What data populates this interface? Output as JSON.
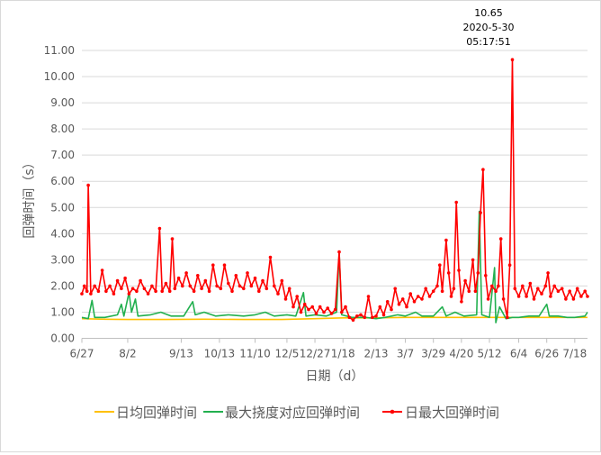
{
  "chart_data": {
    "type": "line",
    "title": "",
    "xlabel": "日期（d）",
    "ylabel": "回弹时间（s）",
    "ylim": [
      0,
      11
    ],
    "yticks": [
      "0.00",
      "1.00",
      "2.00",
      "3.00",
      "4.00",
      "5.00",
      "6.00",
      "7.00",
      "8.00",
      "9.00",
      "10.00",
      "11.00"
    ],
    "x_start": "2019-06-27",
    "x_end": "2020-07-28",
    "xticks": [
      {
        "date": "2019-06-27",
        "label": "6/27"
      },
      {
        "date": "2019-08-02",
        "label": "8/2"
      },
      {
        "date": "2019-09-13",
        "label": "9/13"
      },
      {
        "date": "2019-10-13",
        "label": "10/13"
      },
      {
        "date": "2019-11-10",
        "label": "11/10"
      },
      {
        "date": "2019-12-05",
        "label": "12/5"
      },
      {
        "date": "2019-12-27",
        "label": "12/27"
      },
      {
        "date": "2020-01-18",
        "label": "1/18"
      },
      {
        "date": "2020-02-13",
        "label": "2/13"
      },
      {
        "date": "2020-03-07",
        "label": "3/7"
      },
      {
        "date": "2020-03-29",
        "label": "3/29"
      },
      {
        "date": "2020-04-20",
        "label": "4/20"
      },
      {
        "date": "2020-05-12",
        "label": "5/12"
      },
      {
        "date": "2020-06-04",
        "label": "6/4"
      },
      {
        "date": "2020-06-26",
        "label": "6/26"
      },
      {
        "date": "2020-07-18",
        "label": "7/18"
      }
    ],
    "legend_position": "bottom",
    "annotation": {
      "date": "2020-05-30",
      "value": 10.65,
      "lines": [
        "10.65",
        "2020-5-30",
        "05:17:51"
      ]
    },
    "series": [
      {
        "name": "日均回弹时间",
        "color": "#FFC000",
        "markers": false,
        "points": [
          [
            "2019-06-27",
            0.75
          ],
          [
            "2019-07-15",
            0.73
          ],
          [
            "2019-08-02",
            0.72
          ],
          [
            "2019-09-01",
            0.72
          ],
          [
            "2019-10-01",
            0.73
          ],
          [
            "2019-11-01",
            0.72
          ],
          [
            "2019-12-01",
            0.72
          ],
          [
            "2019-12-27",
            0.75
          ],
          [
            "2020-01-18",
            0.78
          ],
          [
            "2020-02-13",
            0.78
          ],
          [
            "2020-03-07",
            0.8
          ],
          [
            "2020-03-29",
            0.8
          ],
          [
            "2020-04-20",
            0.8
          ],
          [
            "2020-05-12",
            0.8
          ],
          [
            "2020-06-04",
            0.8
          ],
          [
            "2020-06-26",
            0.8
          ],
          [
            "2020-07-28",
            0.8
          ]
        ]
      },
      {
        "name": "最大挠度对应回弹时间",
        "color": "#22B04F",
        "markers": false,
        "points": [
          [
            "2019-06-27",
            0.8
          ],
          [
            "2019-07-02",
            0.75
          ],
          [
            "2019-07-05",
            1.45
          ],
          [
            "2019-07-07",
            0.8
          ],
          [
            "2019-07-15",
            0.8
          ],
          [
            "2019-07-25",
            0.9
          ],
          [
            "2019-07-28",
            1.3
          ],
          [
            "2019-07-30",
            0.85
          ],
          [
            "2019-08-03",
            1.75
          ],
          [
            "2019-08-05",
            1.0
          ],
          [
            "2019-08-08",
            1.5
          ],
          [
            "2019-08-10",
            0.85
          ],
          [
            "2019-08-20",
            0.9
          ],
          [
            "2019-08-28",
            1.0
          ],
          [
            "2019-09-05",
            0.85
          ],
          [
            "2019-09-15",
            0.85
          ],
          [
            "2019-09-22",
            1.4
          ],
          [
            "2019-09-24",
            0.9
          ],
          [
            "2019-10-01",
            1.0
          ],
          [
            "2019-10-10",
            0.85
          ],
          [
            "2019-10-20",
            0.9
          ],
          [
            "2019-11-01",
            0.85
          ],
          [
            "2019-11-10",
            0.9
          ],
          [
            "2019-11-18",
            1.0
          ],
          [
            "2019-11-25",
            0.85
          ],
          [
            "2019-12-05",
            0.9
          ],
          [
            "2019-12-12",
            0.85
          ],
          [
            "2019-12-18",
            1.75
          ],
          [
            "2019-12-20",
            0.85
          ],
          [
            "2019-12-27",
            0.9
          ],
          [
            "2020-01-05",
            0.85
          ],
          [
            "2020-01-13",
            1.0
          ],
          [
            "2020-01-15",
            3.3
          ],
          [
            "2020-01-17",
            0.9
          ],
          [
            "2020-01-25",
            0.8
          ],
          [
            "2020-02-05",
            0.8
          ],
          [
            "2020-02-13",
            0.75
          ],
          [
            "2020-02-20",
            0.8
          ],
          [
            "2020-03-01",
            0.9
          ],
          [
            "2020-03-07",
            0.85
          ],
          [
            "2020-03-15",
            1.0
          ],
          [
            "2020-03-20",
            0.85
          ],
          [
            "2020-03-29",
            0.85
          ],
          [
            "2020-04-05",
            1.2
          ],
          [
            "2020-04-08",
            0.85
          ],
          [
            "2020-04-15",
            1.0
          ],
          [
            "2020-04-22",
            0.85
          ],
          [
            "2020-05-02",
            0.9
          ],
          [
            "2020-05-04",
            4.85
          ],
          [
            "2020-05-06",
            0.9
          ],
          [
            "2020-05-12",
            0.8
          ],
          [
            "2020-05-16",
            2.7
          ],
          [
            "2020-05-17",
            0.6
          ],
          [
            "2020-05-20",
            1.2
          ],
          [
            "2020-05-25",
            0.75
          ],
          [
            "2020-05-30",
            0.8
          ],
          [
            "2020-06-04",
            0.8
          ],
          [
            "2020-06-12",
            0.85
          ],
          [
            "2020-06-20",
            0.85
          ],
          [
            "2020-06-26",
            1.3
          ],
          [
            "2020-06-28",
            0.85
          ],
          [
            "2020-07-05",
            0.85
          ],
          [
            "2020-07-12",
            0.8
          ],
          [
            "2020-07-18",
            0.8
          ],
          [
            "2020-07-26",
            0.85
          ],
          [
            "2020-07-28",
            1.0
          ]
        ]
      },
      {
        "name": "日最大回弹时间",
        "color": "#FF0000",
        "markers": true,
        "points": [
          [
            "2019-06-27",
            1.7
          ],
          [
            "2019-06-29",
            2.0
          ],
          [
            "2019-07-01",
            1.8
          ],
          [
            "2019-07-02",
            5.85
          ],
          [
            "2019-07-04",
            1.7
          ],
          [
            "2019-07-07",
            2.0
          ],
          [
            "2019-07-10",
            1.8
          ],
          [
            "2019-07-13",
            2.6
          ],
          [
            "2019-07-16",
            1.8
          ],
          [
            "2019-07-19",
            2.0
          ],
          [
            "2019-07-22",
            1.7
          ],
          [
            "2019-07-25",
            2.2
          ],
          [
            "2019-07-28",
            1.9
          ],
          [
            "2019-07-31",
            2.3
          ],
          [
            "2019-08-03",
            1.7
          ],
          [
            "2019-08-06",
            1.9
          ],
          [
            "2019-08-09",
            1.8
          ],
          [
            "2019-08-12",
            2.2
          ],
          [
            "2019-08-15",
            1.9
          ],
          [
            "2019-08-18",
            1.7
          ],
          [
            "2019-08-21",
            2.0
          ],
          [
            "2019-08-24",
            1.8
          ],
          [
            "2019-08-27",
            4.2
          ],
          [
            "2019-08-29",
            1.8
          ],
          [
            "2019-09-01",
            2.1
          ],
          [
            "2019-09-04",
            1.8
          ],
          [
            "2019-09-06",
            3.8
          ],
          [
            "2019-09-08",
            1.9
          ],
          [
            "2019-09-11",
            2.3
          ],
          [
            "2019-09-14",
            2.0
          ],
          [
            "2019-09-17",
            2.5
          ],
          [
            "2019-09-20",
            2.0
          ],
          [
            "2019-09-23",
            1.8
          ],
          [
            "2019-09-26",
            2.4
          ],
          [
            "2019-09-29",
            1.9
          ],
          [
            "2019-10-02",
            2.2
          ],
          [
            "2019-10-05",
            1.8
          ],
          [
            "2019-10-08",
            2.8
          ],
          [
            "2019-10-11",
            2.0
          ],
          [
            "2019-10-14",
            1.9
          ],
          [
            "2019-10-17",
            2.8
          ],
          [
            "2019-10-20",
            2.1
          ],
          [
            "2019-10-23",
            1.8
          ],
          [
            "2019-10-26",
            2.4
          ],
          [
            "2019-10-29",
            2.0
          ],
          [
            "2019-11-01",
            1.9
          ],
          [
            "2019-11-04",
            2.5
          ],
          [
            "2019-11-07",
            2.0
          ],
          [
            "2019-11-10",
            2.3
          ],
          [
            "2019-11-13",
            1.8
          ],
          [
            "2019-11-16",
            2.2
          ],
          [
            "2019-11-19",
            1.9
          ],
          [
            "2019-11-22",
            3.1
          ],
          [
            "2019-11-25",
            2.0
          ],
          [
            "2019-11-28",
            1.7
          ],
          [
            "2019-12-01",
            2.2
          ],
          [
            "2019-12-04",
            1.5
          ],
          [
            "2019-12-07",
            1.9
          ],
          [
            "2019-12-10",
            1.2
          ],
          [
            "2019-12-13",
            1.6
          ],
          [
            "2019-12-16",
            1.0
          ],
          [
            "2019-12-19",
            1.3
          ],
          [
            "2019-12-22",
            1.1
          ],
          [
            "2019-12-25",
            1.2
          ],
          [
            "2019-12-28",
            0.95
          ],
          [
            "2019-12-31",
            1.2
          ],
          [
            "2020-01-03",
            1.0
          ],
          [
            "2020-01-06",
            1.15
          ],
          [
            "2020-01-09",
            0.95
          ],
          [
            "2020-01-12",
            1.1
          ],
          [
            "2020-01-15",
            3.3
          ],
          [
            "2020-01-17",
            1.0
          ],
          [
            "2020-01-20",
            1.2
          ],
          [
            "2020-01-23",
            0.8
          ],
          [
            "2020-01-26",
            0.7
          ],
          [
            "2020-01-29",
            0.85
          ],
          [
            "2020-02-01",
            0.9
          ],
          [
            "2020-02-04",
            0.8
          ],
          [
            "2020-02-07",
            1.6
          ],
          [
            "2020-02-10",
            0.8
          ],
          [
            "2020-02-13",
            0.85
          ],
          [
            "2020-02-16",
            1.2
          ],
          [
            "2020-02-19",
            0.9
          ],
          [
            "2020-02-22",
            1.4
          ],
          [
            "2020-02-25",
            1.1
          ],
          [
            "2020-02-28",
            1.9
          ],
          [
            "2020-03-02",
            1.3
          ],
          [
            "2020-03-05",
            1.5
          ],
          [
            "2020-03-08",
            1.2
          ],
          [
            "2020-03-11",
            1.7
          ],
          [
            "2020-03-14",
            1.4
          ],
          [
            "2020-03-17",
            1.6
          ],
          [
            "2020-03-20",
            1.5
          ],
          [
            "2020-03-23",
            1.9
          ],
          [
            "2020-03-26",
            1.6
          ],
          [
            "2020-03-29",
            1.8
          ],
          [
            "2020-04-01",
            2.0
          ],
          [
            "2020-04-03",
            2.8
          ],
          [
            "2020-04-05",
            1.8
          ],
          [
            "2020-04-08",
            3.75
          ],
          [
            "2020-04-10",
            2.5
          ],
          [
            "2020-04-12",
            1.6
          ],
          [
            "2020-04-14",
            1.9
          ],
          [
            "2020-04-16",
            5.2
          ],
          [
            "2020-04-18",
            2.6
          ],
          [
            "2020-04-20",
            1.4
          ],
          [
            "2020-04-23",
            2.2
          ],
          [
            "2020-04-26",
            1.8
          ],
          [
            "2020-04-29",
            3.0
          ],
          [
            "2020-05-01",
            1.8
          ],
          [
            "2020-05-03",
            2.5
          ],
          [
            "2020-05-05",
            4.8
          ],
          [
            "2020-05-07",
            6.45
          ],
          [
            "2020-05-09",
            2.4
          ],
          [
            "2020-05-11",
            1.5
          ],
          [
            "2020-05-14",
            2.0
          ],
          [
            "2020-05-17",
            1.8
          ],
          [
            "2020-05-19",
            2.0
          ],
          [
            "2020-05-21",
            3.8
          ],
          [
            "2020-05-23",
            1.5
          ],
          [
            "2020-05-26",
            0.8
          ],
          [
            "2020-05-28",
            2.8
          ],
          [
            "2020-05-30",
            10.65
          ],
          [
            "2020-06-01",
            1.9
          ],
          [
            "2020-06-04",
            1.6
          ],
          [
            "2020-06-07",
            2.0
          ],
          [
            "2020-06-10",
            1.6
          ],
          [
            "2020-06-13",
            2.1
          ],
          [
            "2020-06-16",
            1.5
          ],
          [
            "2020-06-19",
            1.9
          ],
          [
            "2020-06-22",
            1.7
          ],
          [
            "2020-06-25",
            2.0
          ],
          [
            "2020-06-27",
            2.5
          ],
          [
            "2020-06-29",
            1.6
          ],
          [
            "2020-07-02",
            2.0
          ],
          [
            "2020-07-05",
            1.8
          ],
          [
            "2020-07-08",
            1.9
          ],
          [
            "2020-07-11",
            1.5
          ],
          [
            "2020-07-14",
            1.8
          ],
          [
            "2020-07-17",
            1.5
          ],
          [
            "2020-07-20",
            1.9
          ],
          [
            "2020-07-23",
            1.6
          ],
          [
            "2020-07-26",
            1.8
          ],
          [
            "2020-07-28",
            1.6
          ]
        ]
      }
    ]
  }
}
